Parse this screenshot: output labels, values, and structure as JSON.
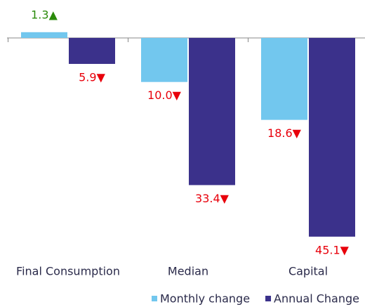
{
  "chart_data": {
    "type": "bar",
    "categories": [
      "Final Consumption",
      "Median",
      "Capital"
    ],
    "series": [
      {
        "name": "Monthly change",
        "color": "#72c7ee",
        "values": [
          1.3,
          -10.0,
          -18.6
        ],
        "value_labels": [
          "1.3▲",
          "10.0▼",
          "18.6▼"
        ]
      },
      {
        "name": "Annual Change",
        "color": "#3b318b",
        "values": [
          -5.9,
          -33.4,
          -45.1
        ],
        "value_labels": [
          "5.9▼",
          "33.4▼",
          "45.1▼"
        ]
      }
    ],
    "ylim": [
      -50,
      5
    ],
    "up_color": "#2a8a0a",
    "down_color": "#e8000b"
  }
}
